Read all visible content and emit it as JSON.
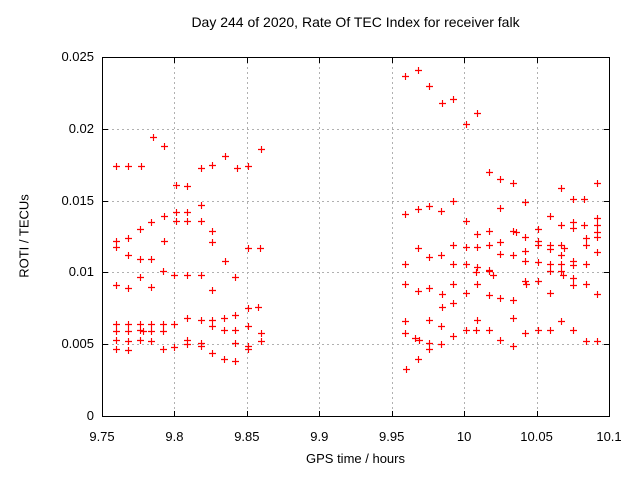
{
  "chart_data": {
    "type": "scatter",
    "title": "Day 244 of 2020, Rate Of TEC Index for receiver falk",
    "xlabel": "GPS time / hours",
    "ylabel": "ROTI / TECUs",
    "xlim": [
      9.75,
      10.1
    ],
    "ylim": [
      0,
      0.025
    ],
    "x_tick_values": [
      9.75,
      9.8,
      9.85,
      9.9,
      9.95,
      10,
      10.05,
      10.1
    ],
    "x_tick_labels": [
      "9.75",
      "9.8",
      "9.85",
      "9.9",
      "9.95",
      "10",
      "10.05",
      "10.1"
    ],
    "y_tick_values": [
      0,
      0.005,
      0.01,
      0.015,
      0.02,
      0.025
    ],
    "y_tick_labels": [
      "0",
      "0.005",
      "0.01",
      "0.015",
      "0.02",
      "0.025"
    ],
    "grid": true,
    "legend_position": "none",
    "marker": {
      "shape": "plus",
      "size": 7
    },
    "colors": {
      "marker": "#ff0000",
      "grid": "#b0b0b0",
      "axis": "#000000",
      "background": "#ffffff",
      "text": "#000000"
    },
    "series": [
      {
        "name": "ROTI",
        "points": [
          [
            9.785,
            0.0194
          ],
          [
            9.793,
            0.0188
          ],
          [
            9.86,
            0.0186
          ],
          [
            9.835,
            0.0181
          ],
          [
            9.826,
            0.0175
          ],
          [
            9.851,
            0.0174
          ],
          [
            9.76,
            0.0174
          ],
          [
            9.768,
            0.0174
          ],
          [
            9.777,
            0.0174
          ],
          [
            9.843,
            0.0173
          ],
          [
            9.818,
            0.0173
          ],
          [
            9.801,
            0.0161
          ],
          [
            9.809,
            0.016
          ],
          [
            9.818,
            0.0147
          ],
          [
            9.801,
            0.0142
          ],
          [
            9.809,
            0.0142
          ],
          [
            9.793,
            0.0139
          ],
          [
            9.801,
            0.0136
          ],
          [
            9.809,
            0.0136
          ],
          [
            9.818,
            0.0136
          ],
          [
            9.784,
            0.0135
          ],
          [
            9.776,
            0.013
          ],
          [
            9.826,
            0.0129
          ],
          [
            9.768,
            0.0124
          ],
          [
            9.76,
            0.0122
          ],
          [
            9.793,
            0.0122
          ],
          [
            9.826,
            0.0121
          ],
          [
            9.76,
            0.0118
          ],
          [
            9.851,
            0.0117
          ],
          [
            9.859,
            0.0117
          ],
          [
            9.768,
            0.0112
          ],
          [
            9.776,
            0.0109
          ],
          [
            9.784,
            0.0109
          ],
          [
            9.835,
            0.0108
          ],
          [
            9.792,
            0.0101
          ],
          [
            9.8,
            0.0098
          ],
          [
            9.809,
            0.0098
          ],
          [
            9.818,
            0.0098
          ],
          [
            9.776,
            0.0097
          ],
          [
            9.842,
            0.0097
          ],
          [
            9.76,
            0.0091
          ],
          [
            9.784,
            0.009
          ],
          [
            9.768,
            0.0089
          ],
          [
            9.826,
            0.0088
          ],
          [
            9.858,
            0.0076
          ],
          [
            9.851,
            0.0075
          ],
          [
            9.842,
            0.007
          ],
          [
            9.809,
            0.0068
          ],
          [
            9.834,
            0.0068
          ],
          [
            9.818,
            0.0067
          ],
          [
            9.826,
            0.0067
          ],
          [
            9.76,
            0.0064
          ],
          [
            9.768,
            0.0064
          ],
          [
            9.776,
            0.0064
          ],
          [
            9.784,
            0.0064
          ],
          [
            9.792,
            0.0064
          ],
          [
            9.8,
            0.0064
          ],
          [
            9.826,
            0.0063
          ],
          [
            9.851,
            0.0063
          ],
          [
            9.834,
            0.006
          ],
          [
            9.842,
            0.006
          ],
          [
            9.76,
            0.0059
          ],
          [
            9.768,
            0.0059
          ],
          [
            9.776,
            0.006
          ],
          [
            9.778,
            0.0059
          ],
          [
            9.784,
            0.0059
          ],
          [
            9.792,
            0.0059
          ],
          [
            9.86,
            0.0058
          ],
          [
            9.76,
            0.0053
          ],
          [
            9.768,
            0.0052
          ],
          [
            9.776,
            0.0053
          ],
          [
            9.784,
            0.0052
          ],
          [
            9.809,
            0.0053
          ],
          [
            9.86,
            0.0052
          ],
          [
            9.842,
            0.0051
          ],
          [
            9.818,
            0.0051
          ],
          [
            9.809,
            0.005
          ],
          [
            9.851,
            0.0049
          ],
          [
            9.818,
            0.0049
          ],
          [
            9.76,
            0.0047
          ],
          [
            9.768,
            0.0046
          ],
          [
            9.792,
            0.0047
          ],
          [
            9.8,
            0.0048
          ],
          [
            9.851,
            0.0047
          ],
          [
            9.826,
            0.0044
          ],
          [
            9.834,
            0.004
          ],
          [
            9.842,
            0.0038
          ],
          [
            9.959,
            0.0237
          ],
          [
            9.968,
            0.0241
          ],
          [
            9.976,
            0.023
          ],
          [
            9.985,
            0.0218
          ],
          [
            9.992,
            0.0221
          ],
          [
            10.001,
            0.0203
          ],
          [
            10.009,
            0.0211
          ],
          [
            10.017,
            0.017
          ],
          [
            10.025,
            0.0165
          ],
          [
            10.034,
            0.0162
          ],
          [
            10.092,
            0.0162
          ],
          [
            10.067,
            0.0159
          ],
          [
            10.075,
            0.0151
          ],
          [
            10.083,
            0.0151
          ],
          [
            9.992,
            0.015
          ],
          [
            10.042,
            0.0149
          ],
          [
            9.976,
            0.0146
          ],
          [
            10.025,
            0.0145
          ],
          [
            9.968,
            0.0144
          ],
          [
            9.984,
            0.0143
          ],
          [
            9.959,
            0.0141
          ],
          [
            10.059,
            0.0139
          ],
          [
            10.092,
            0.0138
          ],
          [
            10.001,
            0.0136
          ],
          [
            10.075,
            0.0135
          ],
          [
            10.067,
            0.0133
          ],
          [
            10.083,
            0.0133
          ],
          [
            10.092,
            0.0133
          ],
          [
            10.075,
            0.0131
          ],
          [
            10.051,
            0.013
          ],
          [
            10.034,
            0.0129
          ],
          [
            10.017,
            0.0129
          ],
          [
            10.009,
            0.0127
          ],
          [
            10.092,
            0.0128
          ],
          [
            10.036,
            0.0128
          ],
          [
            10.042,
            0.0125
          ],
          [
            10.092,
            0.0125
          ],
          [
            10.084,
            0.0124
          ],
          [
            10.025,
            0.0121
          ],
          [
            10.051,
            0.0122
          ],
          [
            10.051,
            0.0119
          ],
          [
            10.059,
            0.0119
          ],
          [
            10.067,
            0.0119
          ],
          [
            10.069,
            0.0117
          ],
          [
            10.084,
            0.0119
          ],
          [
            9.968,
            0.0117
          ],
          [
            9.992,
            0.0119
          ],
          [
            10.001,
            0.0118
          ],
          [
            10.009,
            0.0118
          ],
          [
            10.017,
            0.0119
          ],
          [
            10.059,
            0.0116
          ],
          [
            10.025,
            0.0113
          ],
          [
            10.034,
            0.0112
          ],
          [
            10.042,
            0.0115
          ],
          [
            9.976,
            0.0111
          ],
          [
            9.984,
            0.0112
          ],
          [
            10.092,
            0.0114
          ],
          [
            10.067,
            0.0112
          ],
          [
            9.959,
            0.0106
          ],
          [
            9.992,
            0.0106
          ],
          [
            10.001,
            0.0106
          ],
          [
            10.009,
            0.0104
          ],
          [
            10.042,
            0.0108
          ],
          [
            10.051,
            0.0107
          ],
          [
            10.059,
            0.0106
          ],
          [
            10.067,
            0.0106
          ],
          [
            10.075,
            0.0108
          ],
          [
            10.075,
            0.0105
          ],
          [
            10.084,
            0.0106
          ],
          [
            10.017,
            0.0102
          ],
          [
            10.059,
            0.0101
          ],
          [
            10.008,
            0.01
          ],
          [
            10.017,
            0.0101
          ],
          [
            10.02,
            0.0098
          ],
          [
            10.067,
            0.0101
          ],
          [
            10.068,
            0.0098
          ],
          [
            9.959,
            0.0092
          ],
          [
            9.992,
            0.0092
          ],
          [
            10.009,
            0.0092
          ],
          [
            9.976,
            0.0089
          ],
          [
            9.968,
            0.0087
          ],
          [
            10.042,
            0.0094
          ],
          [
            10.043,
            0.0092
          ],
          [
            10.051,
            0.0094
          ],
          [
            10.075,
            0.0096
          ],
          [
            10.075,
            0.0091
          ],
          [
            10.084,
            0.0092
          ],
          [
            9.985,
            0.0085
          ],
          [
            10.001,
            0.0086
          ],
          [
            10.059,
            0.0086
          ],
          [
            10.092,
            0.0085
          ],
          [
            10.017,
            0.0084
          ],
          [
            10.025,
            0.0082
          ],
          [
            10.034,
            0.0081
          ],
          [
            9.992,
            0.0079
          ],
          [
            9.985,
            0.0076
          ],
          [
            10.009,
            0.0067
          ],
          [
            9.976,
            0.0067
          ],
          [
            9.959,
            0.0066
          ],
          [
            10.034,
            0.0068
          ],
          [
            10.067,
            0.0066
          ],
          [
            9.984,
            0.0063
          ],
          [
            10.001,
            0.006
          ],
          [
            10.008,
            0.006
          ],
          [
            10.017,
            0.006
          ],
          [
            10.051,
            0.006
          ],
          [
            10.059,
            0.006
          ],
          [
            10.075,
            0.006
          ],
          [
            10.042,
            0.0058
          ],
          [
            9.959,
            0.0058
          ],
          [
            9.992,
            0.0056
          ],
          [
            9.966,
            0.0054
          ],
          [
            9.969,
            0.0053
          ],
          [
            10.025,
            0.0053
          ],
          [
            10.084,
            0.0052
          ],
          [
            10.092,
            0.0052
          ],
          [
            9.976,
            0.0051
          ],
          [
            9.984,
            0.005
          ],
          [
            10.034,
            0.0049
          ],
          [
            9.976,
            0.0047
          ],
          [
            9.968,
            0.004
          ],
          [
            9.96,
            0.0033
          ]
        ]
      }
    ]
  }
}
